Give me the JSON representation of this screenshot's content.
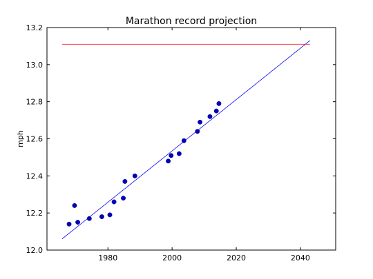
{
  "chart_data": {
    "type": "scatter",
    "title": "Marathon record projection",
    "xlabel": "",
    "ylabel": "mph",
    "xlim": [
      1961,
      2051
    ],
    "ylim": [
      12.0,
      13.2
    ],
    "x_ticks": [
      1980,
      2000,
      2020,
      2040
    ],
    "y_ticks": [
      12.0,
      12.2,
      12.4,
      12.6,
      12.8,
      13.0,
      13.2
    ],
    "grid": false,
    "colors": {
      "points": "#0000bf",
      "fit_line": "#0000ff",
      "ceiling_line": "#ff0000"
    },
    "series": [
      {
        "kind": "points",
        "x": [
          1967.9,
          1969.6,
          1970.6,
          1974.2,
          1978.1,
          1980.6,
          1981.9,
          1984.8,
          1985.3,
          1988.4,
          1998.8,
          1999.7,
          2002.2,
          2003.7,
          2007.9,
          2008.7,
          2011.8,
          2013.8,
          2014.6
        ],
        "y": [
          12.14,
          12.24,
          12.15,
          12.17,
          12.18,
          12.19,
          12.26,
          12.28,
          12.37,
          12.4,
          12.48,
          12.51,
          12.52,
          12.59,
          12.64,
          12.69,
          12.72,
          12.75,
          12.79
        ]
      },
      {
        "kind": "line",
        "x": [
          1965.7,
          2043.0
        ],
        "y": [
          12.06,
          13.13
        ]
      },
      {
        "kind": "line",
        "x": [
          1965.7,
          2043.0
        ],
        "y": [
          13.11,
          13.11
        ]
      }
    ]
  }
}
